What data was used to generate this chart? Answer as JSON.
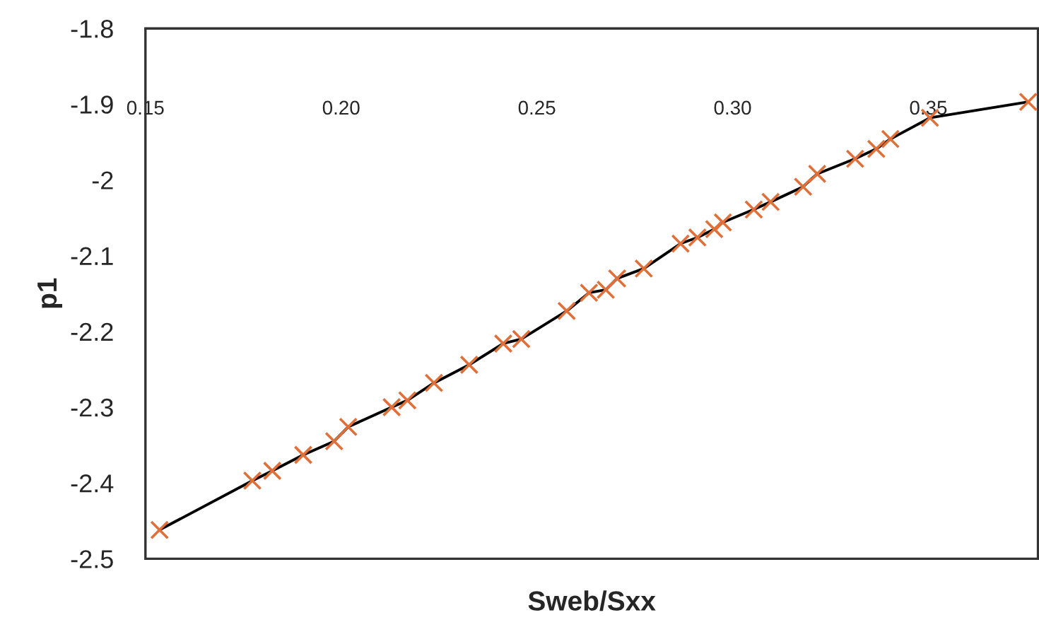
{
  "chart_data": {
    "type": "scatter",
    "xlabel": "Sweb/Sxx",
    "ylabel": "p1",
    "xlim": [
      0.15,
      0.378
    ],
    "ylim": [
      -2.5,
      -1.8
    ],
    "xticks": [
      {
        "value": 0.15,
        "label": "0.15"
      },
      {
        "value": 0.2,
        "label": "0.20"
      },
      {
        "value": 0.25,
        "label": "0.25"
      },
      {
        "value": 0.3,
        "label": "0.30"
      },
      {
        "value": 0.35,
        "label": "0.35"
      }
    ],
    "yticks": [
      -2.5,
      -2.4,
      -2.3,
      -2.2,
      -2.1,
      -2,
      -1.9,
      -1.8
    ],
    "grid": false,
    "legend": false,
    "x": [
      0.1536,
      0.1773,
      0.1824,
      0.1903,
      0.1982,
      0.2018,
      0.2129,
      0.2169,
      0.2237,
      0.2327,
      0.2414,
      0.246,
      0.2576,
      0.2633,
      0.2676,
      0.2705,
      0.2773,
      0.2867,
      0.291,
      0.2953,
      0.2975,
      0.3054,
      0.3097,
      0.318,
      0.3216,
      0.3313,
      0.3367,
      0.3403,
      0.3504,
      0.3755
    ],
    "series": [
      {
        "type": "line",
        "color": "#000000",
        "marker": "none",
        "line_style": "solid",
        "values": [
          -2.462,
          -2.397,
          -2.384,
          -2.363,
          -2.345,
          -2.326,
          -2.3,
          -2.291,
          -2.268,
          -2.244,
          -2.216,
          -2.21,
          -2.173,
          -2.149,
          -2.145,
          -2.13,
          -2.117,
          -2.084,
          -2.076,
          -2.065,
          -2.056,
          -2.039,
          -2.029,
          -2.009,
          -1.992,
          -1.972,
          -1.959,
          -1.946,
          -1.918,
          -1.897
        ]
      },
      {
        "color": "#e0703a",
        "marker": "cross",
        "values": [
          -2.462,
          -2.397,
          -2.384,
          -2.363,
          -2.345,
          -2.326,
          -2.3,
          -2.291,
          -2.268,
          -2.244,
          -2.216,
          -2.21,
          -2.173,
          -2.149,
          -2.145,
          -2.13,
          -2.117,
          -2.084,
          -2.076,
          -2.065,
          -2.056,
          -2.039,
          -2.029,
          -2.009,
          -1.992,
          -1.972,
          -1.959,
          -1.946,
          -1.918,
          -1.897
        ]
      }
    ]
  }
}
